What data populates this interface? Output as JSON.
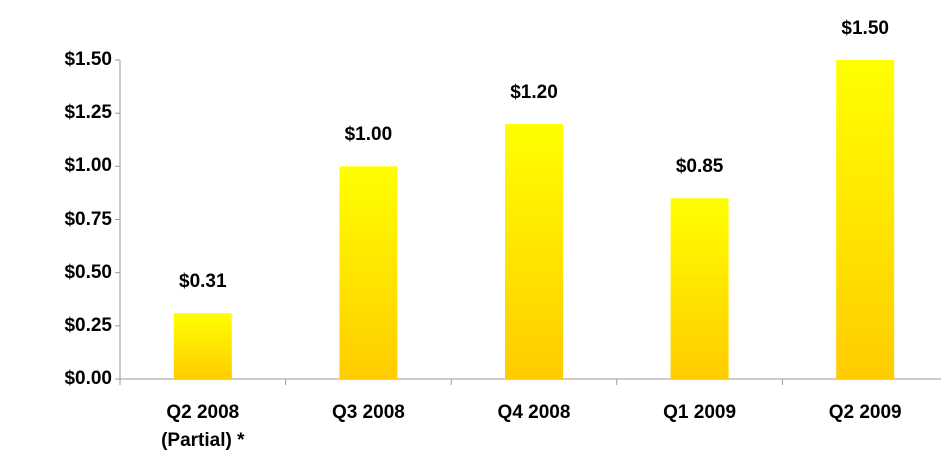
{
  "chart_data": {
    "type": "bar",
    "categories": [
      "Q2 2008 (Partial) *",
      "Q3 2008",
      "Q4 2008",
      "Q1 2009",
      "Q2 2009"
    ],
    "values": [
      0.31,
      1.0,
      1.2,
      0.85,
      1.5
    ],
    "value_labels": [
      "$0.31",
      "$1.00",
      "$1.20",
      "$0.85",
      "$1.50"
    ],
    "color": [
      "#ffff00",
      "#ffcc00"
    ],
    "ylim": [
      0,
      1.5
    ],
    "yticks": [
      {
        "value": 0,
        "label": "$0.00"
      },
      {
        "value": 0.25,
        "label": "$0.25"
      },
      {
        "value": 0.5,
        "label": "$0.50"
      },
      {
        "value": 0.75,
        "label": "$0.75"
      },
      {
        "value": 1.0,
        "label": "$1.00"
      },
      {
        "value": 1.25,
        "label": "$1.25"
      },
      {
        "value": 1.5,
        "label": "$1.50"
      }
    ],
    "grid": false
  }
}
